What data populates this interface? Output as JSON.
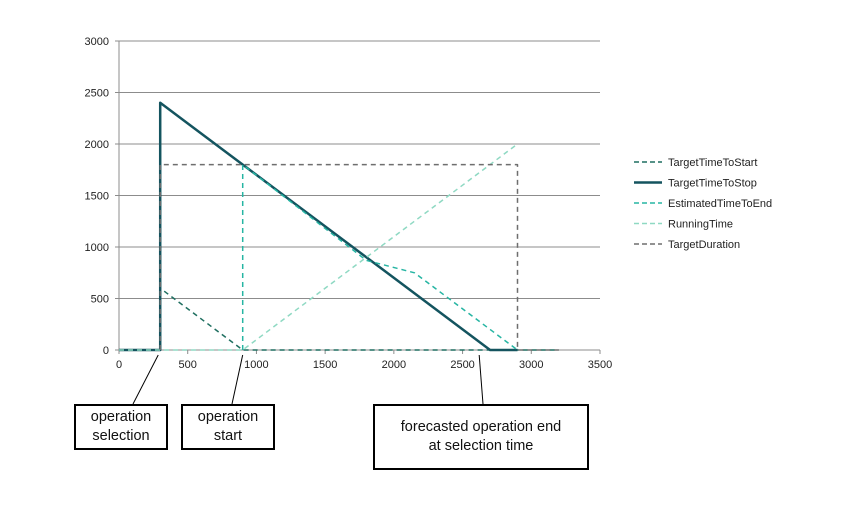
{
  "chart_data": {
    "type": "line",
    "xlim": [
      0,
      3500
    ],
    "ylim": [
      0,
      3000
    ],
    "x_ticks": [
      0,
      500,
      1000,
      1500,
      2000,
      2500,
      3000,
      3500
    ],
    "y_ticks": [
      0,
      500,
      1000,
      1500,
      2000,
      2500,
      3000
    ],
    "grid": "horizontal",
    "legend_position": "right",
    "series": [
      {
        "name": "TargetTimeToStart",
        "color": "#1f6f60",
        "style": "dashed",
        "points": [
          [
            0,
            0
          ],
          [
            300,
            0
          ],
          [
            300,
            600
          ],
          [
            900,
            0
          ],
          [
            3200,
            0
          ]
        ]
      },
      {
        "name": "TargetTimeToStop",
        "color": "#14545f",
        "style": "solid",
        "points": [
          [
            0,
            0
          ],
          [
            300,
            0
          ],
          [
            300,
            2400
          ],
          [
            2700,
            0
          ],
          [
            2900,
            0
          ]
        ]
      },
      {
        "name": "EstimatedTimeToEnd",
        "color": "#26b5a3",
        "style": "dashed",
        "points": [
          [
            900,
            0
          ],
          [
            900,
            1800
          ],
          [
            1800,
            870
          ],
          [
            2150,
            750
          ],
          [
            2900,
            0
          ]
        ]
      },
      {
        "name": "RunningTime",
        "color": "#8fd9c3",
        "style": "dashed",
        "points": [
          [
            0,
            0
          ],
          [
            900,
            0
          ],
          [
            2900,
            2000
          ]
        ]
      },
      {
        "name": "TargetDuration",
        "color": "#6e6e6e",
        "style": "dashed",
        "points": [
          [
            300,
            0
          ],
          [
            300,
            1800
          ],
          [
            2900,
            1800
          ],
          [
            2900,
            0
          ],
          [
            3200,
            0
          ]
        ]
      }
    ],
    "annotations": [
      {
        "text_lines": [
          "operation",
          "selection"
        ],
        "x": 300
      },
      {
        "text_lines": [
          "operation",
          "start"
        ],
        "x": 900
      },
      {
        "text_lines": [
          "forecasted operation end",
          "at selection time"
        ],
        "x": 2650
      }
    ]
  }
}
